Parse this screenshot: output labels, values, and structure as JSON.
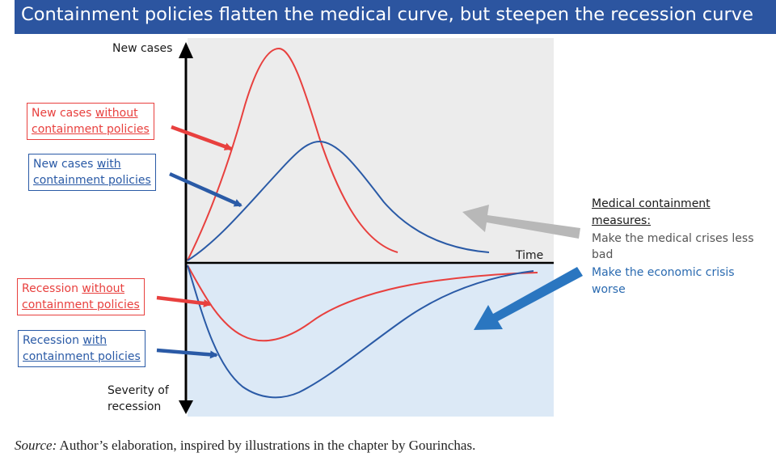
{
  "title": "Containment policies flatten the medical curve, but steepen the recession curve",
  "axes": {
    "y_top_label": "New cases",
    "x_label": "Time",
    "y_bottom_label_line1": "Severity of",
    "y_bottom_label_line2": "recession"
  },
  "callouts": {
    "new_cases_without": {
      "line1_a": "New cases ",
      "line1_b": "without",
      "line2": "containment policies"
    },
    "new_cases_with": {
      "line1_a": "New cases ",
      "line1_b": "with",
      "line2": "containment policies"
    },
    "recession_without": {
      "line1_a": "Recession ",
      "line1_b": "without",
      "line2": "containment policies"
    },
    "recession_with": {
      "line1_a": "Recession ",
      "line1_b": "with",
      "line2": "containment policies"
    }
  },
  "side_note": {
    "heading_line1": "Medical containment",
    "heading_line2": "measures:",
    "medical_line1": "Make the medical crises less",
    "medical_line2": "bad",
    "economic_line1": "Make the economic crisis",
    "economic_line2": "worse"
  },
  "source": {
    "prefix": "Source:",
    "text": " Author’s elaboration, inspired by illustrations in the chapter by Gourinchas."
  },
  "colors": {
    "red": "#e8403e",
    "blue": "#2a5aa6",
    "title_bg": "#2c55a0",
    "upper_panel": "#ececec",
    "lower_panel": "#dce9f6",
    "gray_arrow": "#b8b8b8",
    "blue_arrow": "#2a76c0"
  }
}
